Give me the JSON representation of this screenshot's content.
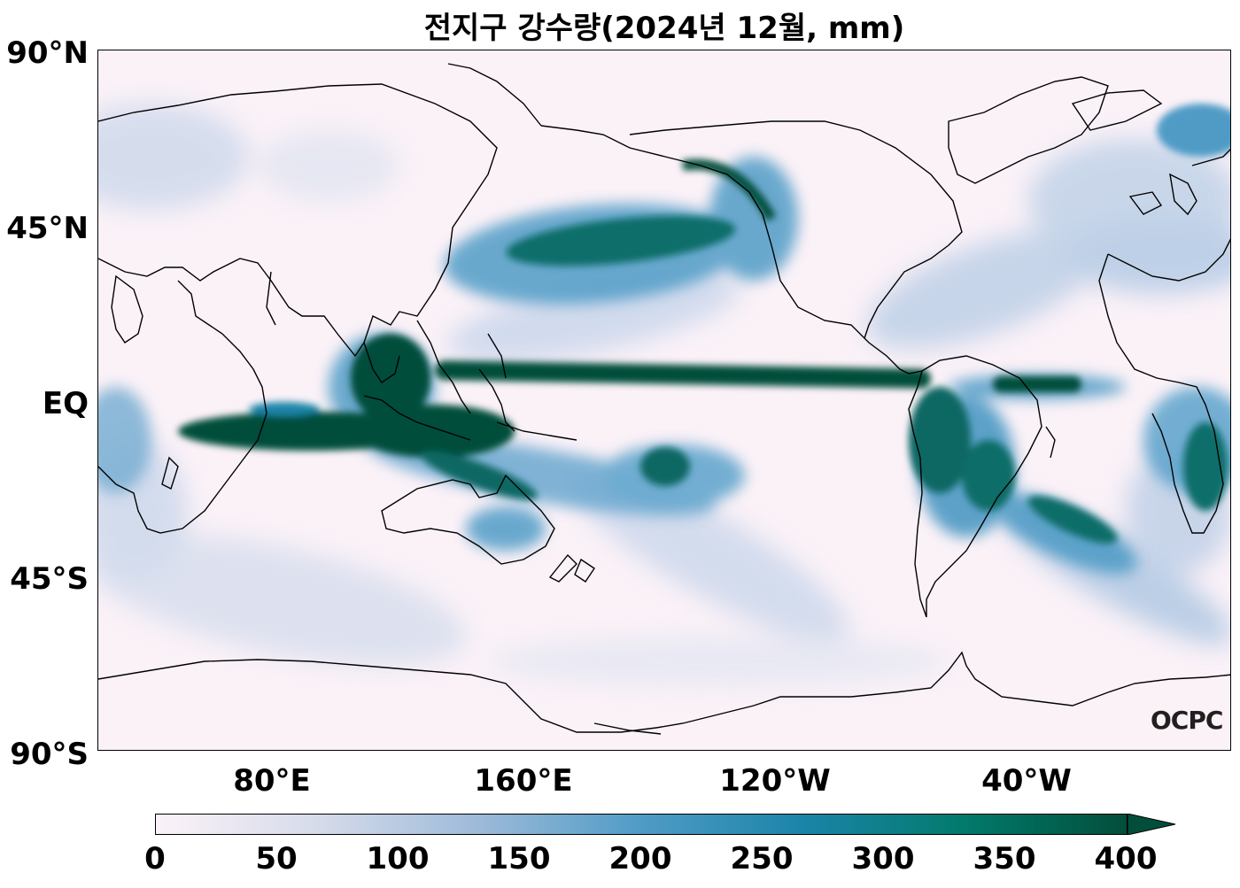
{
  "title": "전지구 강수량(2024년 12월, mm)",
  "y_axis": {
    "labels": [
      "90°N",
      "45°N",
      "EQ",
      "45°S",
      "90°S"
    ]
  },
  "x_axis": {
    "labels": [
      "80°E",
      "160°E",
      "120°W",
      "40°W"
    ]
  },
  "colorbar": {
    "ticks": [
      "0",
      "50",
      "100",
      "150",
      "200",
      "250",
      "300",
      "350",
      "400"
    ],
    "extend": "max",
    "colors": [
      "#fbf2f8",
      "#d6dbea",
      "#9dbad9",
      "#4f9bc6",
      "#1b84a8",
      "#027a6c",
      "#034e3a"
    ]
  },
  "logo": "OCPC",
  "chart_data": {
    "type": "heatmap",
    "title": "전지구 강수량(2024년 12월, mm)",
    "variable": "precipitation",
    "units": "mm",
    "lat_range": [
      -90,
      90
    ],
    "lon_center": "central Pacific",
    "color_range": [
      0,
      400
    ],
    "colormap": "PuBuGn",
    "features": [
      "ITCZ",
      "SPCZ",
      "North Pacific storm track",
      "Maritime Continent",
      "Amazon",
      "South Atlantic convergence zone",
      "North Atlantic storm track"
    ]
  }
}
